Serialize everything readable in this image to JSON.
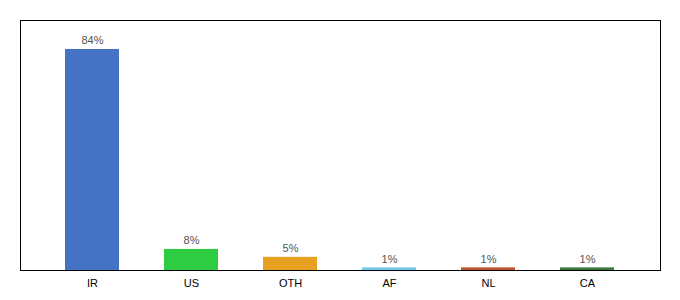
{
  "chart_data": {
    "type": "bar",
    "categories": [
      "IR",
      "US",
      "OTH",
      "AF",
      "NL",
      "CA"
    ],
    "values": [
      84,
      8,
      5,
      1,
      1,
      1
    ],
    "value_labels": [
      "84%",
      "8%",
      "5%",
      "1%",
      "1%",
      "1%"
    ],
    "data_labels": true,
    "colors": [
      "#4472c4",
      "#2ecc40",
      "#e8a020",
      "#74c6e8",
      "#c0522a",
      "#3a7a3a"
    ],
    "ylim": [
      0,
      95
    ],
    "yticks": [],
    "tick_labels": "x",
    "grid": false
  }
}
